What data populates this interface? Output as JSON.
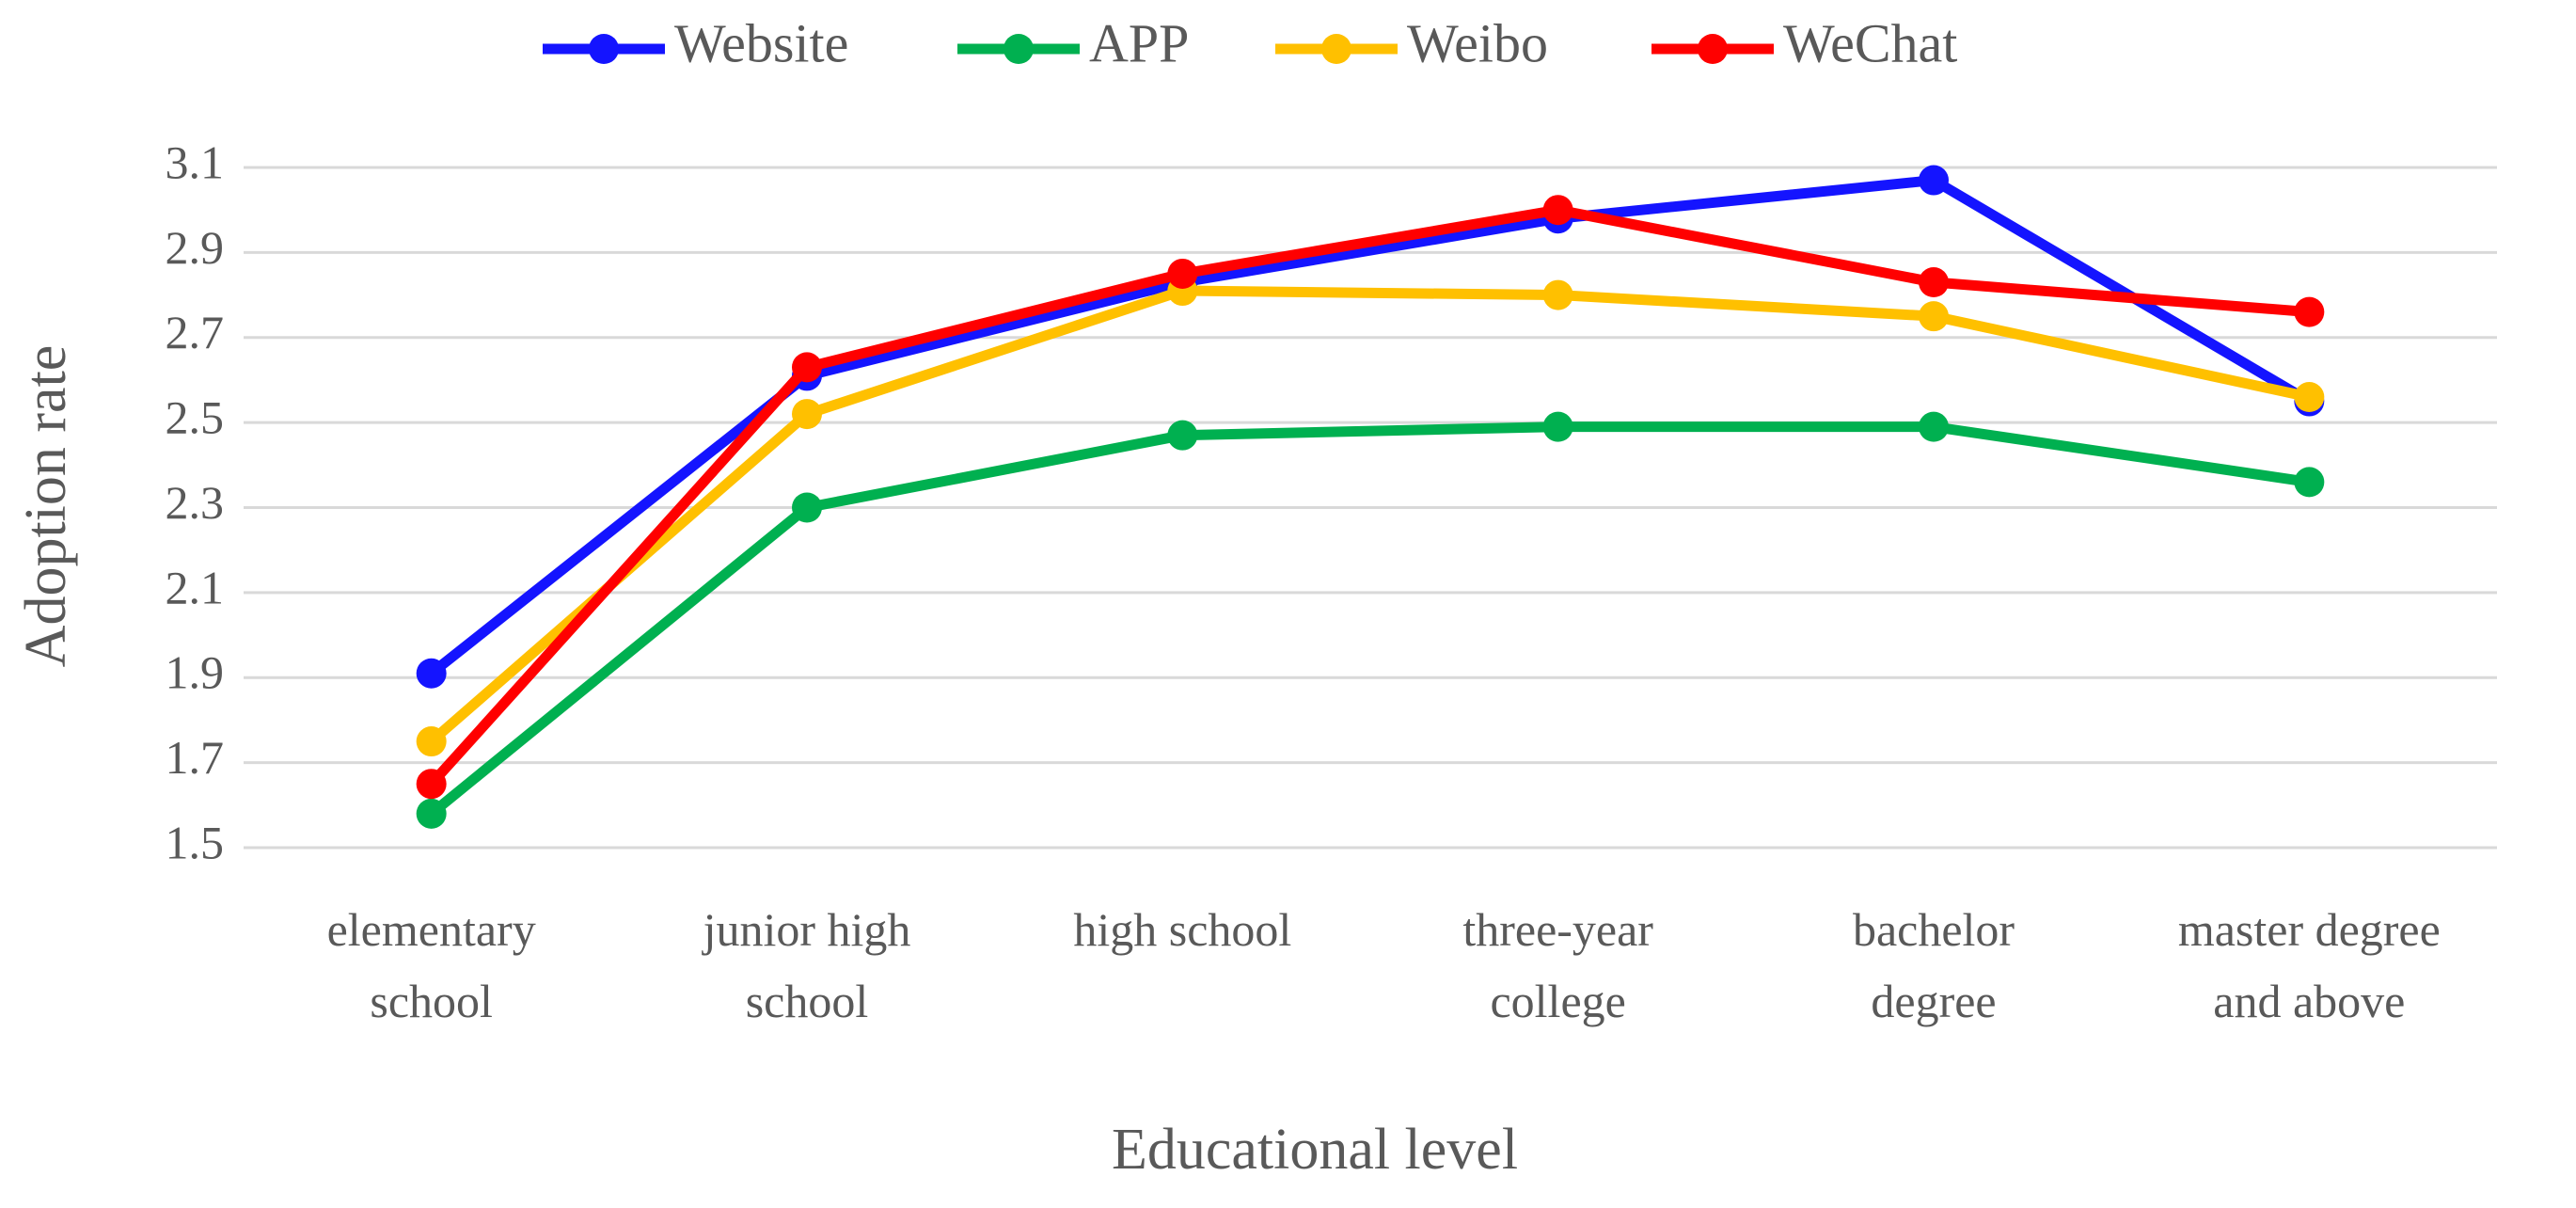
{
  "chart_data": {
    "type": "line",
    "x_label": "Educational level",
    "y_label": "Adoption rate",
    "categories": [
      "elementary school",
      "junior high school",
      "high school",
      "three-year college",
      "bachelor degree",
      "master degree and above"
    ],
    "series": [
      {
        "name": "Website",
        "color": "#1414ff",
        "values": [
          1.91,
          2.61,
          2.83,
          2.98,
          3.07,
          2.55
        ]
      },
      {
        "name": "APP",
        "color": "#00b050",
        "values": [
          1.58,
          2.3,
          2.47,
          2.49,
          2.49,
          2.36
        ]
      },
      {
        "name": "Weibo",
        "color": "#ffc000",
        "values": [
          1.75,
          2.52,
          2.81,
          2.8,
          2.75,
          2.56
        ]
      },
      {
        "name": "WeChat",
        "color": "#ff0000",
        "values": [
          1.65,
          2.63,
          2.85,
          3.0,
          2.83,
          2.76
        ]
      }
    ],
    "ylim": [
      1.5,
      3.1
    ],
    "yticks": [
      1.5,
      1.7,
      1.9,
      2.1,
      2.3,
      2.5,
      2.7,
      2.9,
      3.1
    ],
    "grid": true,
    "legend": "top"
  }
}
